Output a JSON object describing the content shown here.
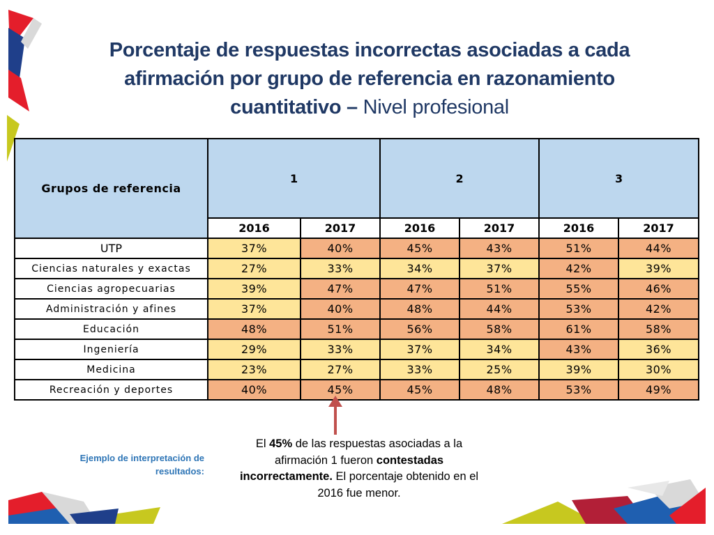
{
  "title": {
    "bold": "Porcentaje de respuestas incorrectas asociadas a cada afirmación por grupo de referencia en razonamiento cuantitativo –",
    "normal": " Nivel profesional"
  },
  "table": {
    "row_header": "Grupos de referencia",
    "groups": [
      "1",
      "2",
      "3"
    ],
    "years": [
      "2016",
      "2017",
      "2016",
      "2017",
      "2016",
      "2017"
    ],
    "rows": [
      {
        "label": "UTP",
        "values": [
          "37%",
          "40%",
          "45%",
          "43%",
          "51%",
          "44%"
        ],
        "colors": [
          "y",
          "o",
          "o",
          "o",
          "o",
          "o"
        ]
      },
      {
        "label": "Ciencias naturales y exactas",
        "values": [
          "27%",
          "33%",
          "34%",
          "37%",
          "42%",
          "39%"
        ],
        "colors": [
          "y",
          "y",
          "y",
          "y",
          "o",
          "y"
        ]
      },
      {
        "label": "Ciencias agropecuarias",
        "values": [
          "39%",
          "47%",
          "47%",
          "51%",
          "55%",
          "46%"
        ],
        "colors": [
          "y",
          "o",
          "o",
          "o",
          "o",
          "o"
        ]
      },
      {
        "label": "Administración y afines",
        "values": [
          "37%",
          "40%",
          "48%",
          "44%",
          "53%",
          "42%"
        ],
        "colors": [
          "y",
          "o",
          "o",
          "o",
          "o",
          "o"
        ]
      },
      {
        "label": "Educación",
        "values": [
          "48%",
          "51%",
          "56%",
          "58%",
          "61%",
          "58%"
        ],
        "colors": [
          "o",
          "o",
          "o",
          "o",
          "o",
          "o"
        ]
      },
      {
        "label": "Ingeniería",
        "values": [
          "29%",
          "33%",
          "37%",
          "34%",
          "43%",
          "36%"
        ],
        "colors": [
          "y",
          "y",
          "y",
          "y",
          "o",
          "y"
        ]
      },
      {
        "label": "Medicina",
        "values": [
          "23%",
          "27%",
          "33%",
          "25%",
          "39%",
          "30%"
        ],
        "colors": [
          "y",
          "y",
          "y",
          "y",
          "y",
          "y"
        ]
      },
      {
        "label": "Recreación y deportes",
        "values": [
          "40%",
          "45%",
          "45%",
          "48%",
          "53%",
          "49%"
        ],
        "colors": [
          "o",
          "o",
          "o",
          "o",
          "o",
          "o"
        ]
      }
    ]
  },
  "example_label": "Ejemplo de interpretación de resultados:",
  "note": {
    "p1": "El ",
    "b1": "45%",
    "p2": " de las respuestas asociadas a la afirmación 1 fueron ",
    "b2": "contestadas incorrectamente.",
    "p3": " El porcentaje obtenido en el 2016 fue menor."
  },
  "colors": {
    "title": "#1f3864",
    "header_fill": "#bdd7ee",
    "cell_yellow": "#fee599",
    "cell_orange": "#f4b183",
    "arrow": "#c0504d",
    "example_label": "#2e75b6"
  }
}
